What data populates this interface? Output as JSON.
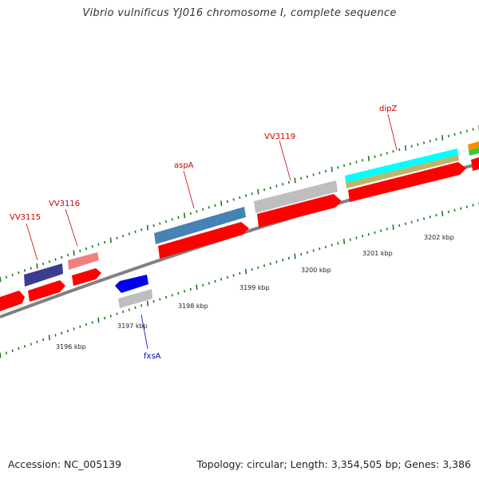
{
  "title": "Vibrio vulnificus YJ016 chromosome I, complete sequence",
  "footer": {
    "accession": "Accession: NC_005139",
    "topology": "Topology: circular; Length: 3,354,505 bp; Genes: 3,386"
  },
  "gene_labels": {
    "vv3115": "VV3115",
    "vv3116": "VV3116",
    "aspA": "aspA",
    "vv3119": "VV3119",
    "dipZ": "dipZ",
    "fxsA": "fxsA"
  },
  "scale_labels": {
    "kbp3196": "3196 kbp",
    "kbp3197": "3197 kbp",
    "kbp3198": "3198 kbp",
    "kbp3199": "3199 kbp",
    "kbp3200": "3200 kbp",
    "kbp3201": "3201 kbp",
    "kbp3202": "3202 kbp"
  },
  "colors": {
    "backbone": "#808080",
    "forward_cds": "#ff0000",
    "reverse_cds": "#0000ee",
    "label_red": "#cc0000",
    "label_blue": "#0000cc",
    "tick": "#1a7a1a",
    "vv3115_feature": "#3d3d8f",
    "vv3116_feature": "#f08080",
    "aspA_feature": "#4682b4",
    "vv3119_feature": "#bebebe",
    "fxsA_feature": "#bebebe",
    "dipZ_feature_1": "#00ffff",
    "dipZ_feature_2": "#bdb76b",
    "edge_feature_1": "#ff8c00",
    "edge_feature_2": "#32cd32"
  }
}
